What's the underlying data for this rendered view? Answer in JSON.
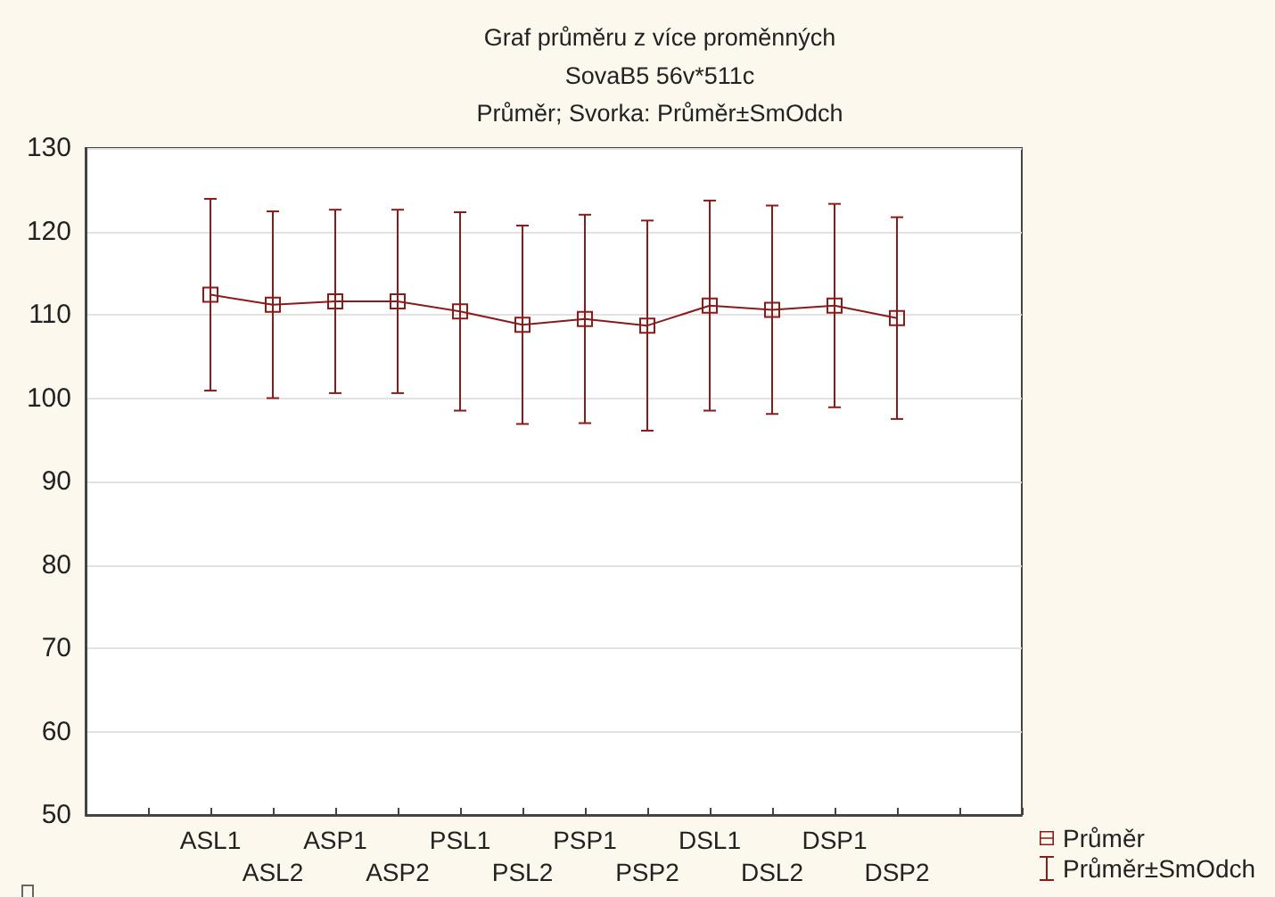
{
  "chart_data": {
    "type": "line",
    "title": "Graf průměru z více proměnných",
    "subtitle": "SovaB5 56v*511c\nPrůměr; Svorka: Průměr±SmOdch",
    "categories": [
      "ASL1",
      "ASL2",
      "ASP1",
      "ASP2",
      "PSL1",
      "PSL2",
      "PSP1",
      "PSP2",
      "DSL1",
      "DSL2",
      "DSP1",
      "DSP2"
    ],
    "series": [
      {
        "name": "Průměr",
        "color": "#8b1a1a",
        "values": [
          112.4,
          111.2,
          111.6,
          111.6,
          110.4,
          108.8,
          109.5,
          108.7,
          111.1,
          110.6,
          111.1,
          109.6
        ],
        "errors": [
          11.5,
          11.2,
          11.0,
          11.0,
          11.9,
          11.9,
          12.5,
          12.6,
          12.6,
          12.5,
          12.2,
          12.1
        ]
      }
    ],
    "ylim": [
      50,
      130
    ],
    "yticks": [
      50,
      60,
      70,
      80,
      90,
      100,
      110,
      120,
      130
    ],
    "grid": "y",
    "legend": "bottom right",
    "marker": "square",
    "annotations": [
      "Průměr±SmOdch"
    ]
  }
}
